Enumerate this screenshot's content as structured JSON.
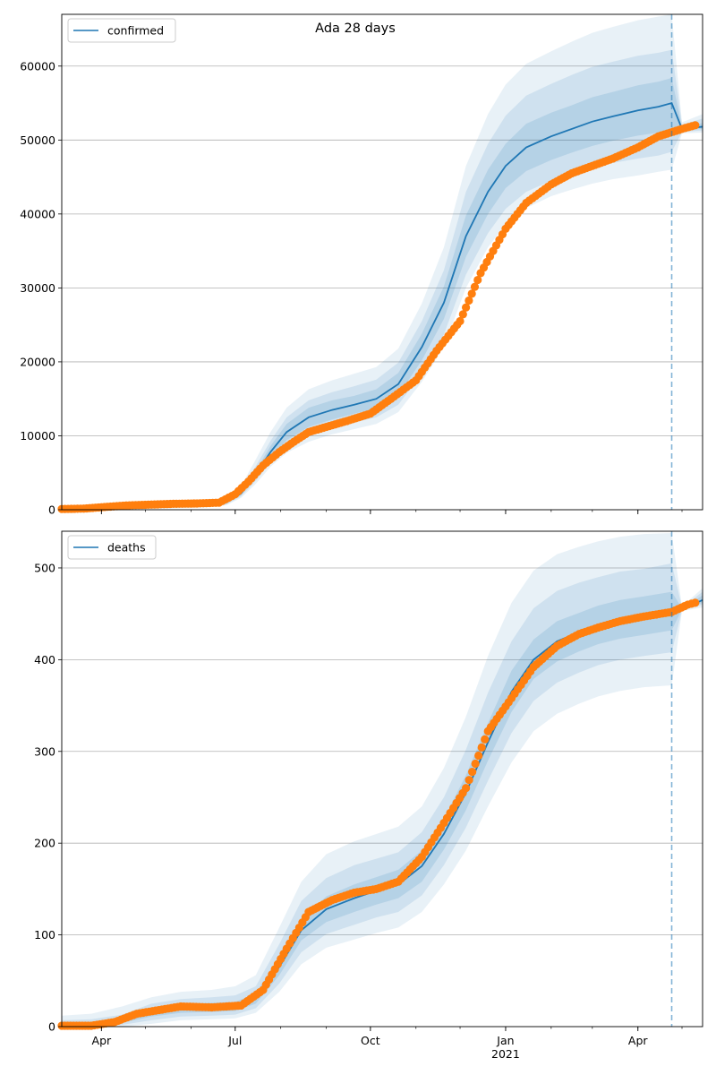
{
  "figure": {
    "title": "Ada 28 days"
  },
  "x_axis": {
    "ticks": [
      {
        "date": "2020-04-01",
        "label": "Apr",
        "sublabel": ""
      },
      {
        "date": "2020-07-01",
        "label": "Jul",
        "sublabel": ""
      },
      {
        "date": "2020-10-01",
        "label": "Oct",
        "sublabel": ""
      },
      {
        "date": "2021-01-01",
        "label": "Jan",
        "sublabel": "2021"
      },
      {
        "date": "2021-04-01",
        "label": "Apr",
        "sublabel": ""
      }
    ],
    "range": [
      "2020-03-05",
      "2021-05-15"
    ]
  },
  "colors": {
    "model_line": "#1f77b4",
    "observed": "#ff7f0e",
    "band": "#1f77b4",
    "forecast_line": "#1f77b4",
    "grid": "#b0b0b0"
  },
  "chart_data": [
    {
      "type": "line",
      "name": "confirmed-panel",
      "legend": {
        "label": "confirmed",
        "placement": "top-left"
      },
      "ylim": [
        0,
        67000
      ],
      "yticks": [
        0,
        10000,
        20000,
        30000,
        40000,
        50000,
        60000
      ],
      "grid": "horizontal",
      "forecast_start": "2021-04-24",
      "model": {
        "x": [
          "2020-03-05",
          "2020-03-25",
          "2020-04-15",
          "2020-05-15",
          "2020-06-10",
          "2020-06-25",
          "2020-07-05",
          "2020-07-15",
          "2020-07-25",
          "2020-08-05",
          "2020-08-20",
          "2020-09-05",
          "2020-09-20",
          "2020-10-05",
          "2020-10-20",
          "2020-11-05",
          "2020-11-20",
          "2020-12-05",
          "2020-12-20",
          "2021-01-01",
          "2021-01-15",
          "2021-02-01",
          "2021-02-15",
          "2021-03-01",
          "2021-03-15",
          "2021-04-01",
          "2021-04-15",
          "2021-04-24",
          "2021-05-01",
          "2021-05-15"
        ],
        "y": [
          100,
          150,
          400,
          600,
          700,
          1000,
          2200,
          4800,
          7800,
          10500,
          12500,
          13500,
          14200,
          15000,
          17000,
          22000,
          28000,
          37000,
          43000,
          46500,
          49000,
          50500,
          51500,
          52500,
          53200,
          54000,
          54500,
          55000,
          51500,
          51800
        ],
        "bands": [
          {
            "lower": [
              0,
              0,
              0,
              200,
              300,
              600,
              1600,
              3500,
              5800,
              7700,
              9200,
              10200,
              10900,
              11600,
              13200,
              17300,
              22000,
              30000,
              35500,
              38600,
              40800,
              42400,
              43300,
              44100,
              44700,
              45200,
              45700,
              46000,
              50900,
              51000
            ],
            "upper": [
              200,
              300,
              800,
              1100,
              1200,
              1600,
              3200,
              6800,
              10500,
              13800,
              16300,
              17500,
              18400,
              19300,
              21800,
              27900,
              35500,
              46500,
              53500,
              57500,
              60300,
              62000,
              63300,
              64500,
              65300,
              66200,
              66700,
              67000,
              52400,
              53500
            ]
          },
          {
            "lower": [
              0,
              20,
              100,
              320,
              420,
              720,
              1800,
              3900,
              6400,
              8500,
              10100,
              11100,
              11800,
              12500,
              14200,
              18500,
              23700,
              31800,
              37400,
              40700,
              43000,
              44500,
              45400,
              46300,
              46900,
              47500,
              47900,
              48400,
              51100,
              51300
            ],
            "upper": [
              180,
              260,
              680,
              900,
              1000,
              1350,
              2800,
              5900,
              9300,
              12500,
              14800,
              15900,
              16700,
              17600,
              19900,
              25500,
              32400,
              43000,
              49500,
              53300,
              56000,
              57600,
              58800,
              59900,
              60600,
              61400,
              61800,
              62200,
              52100,
              52900
            ]
          },
          {
            "lower": [
              40,
              80,
              220,
              440,
              540,
              840,
              2000,
              4300,
              7000,
              9400,
              11200,
              12200,
              13000,
              13700,
              15500,
              20200,
              25800,
              34200,
              40000,
              43500,
              45800,
              47300,
              48300,
              49200,
              49900,
              50600,
              51000,
              51400,
              51300,
              51500
            ],
            "upper": [
              160,
              220,
              560,
              760,
              860,
              1160,
              2400,
              5300,
              8600,
              11600,
              13800,
              14800,
              15400,
              16300,
              18500,
              23800,
              30200,
              39800,
              46000,
              49500,
              52200,
              53700,
              54700,
              55800,
              56500,
              57400,
              57900,
              58400,
              51800,
              52300
            ]
          }
        ]
      },
      "observed": {
        "name": "",
        "x": [
          "2020-03-05",
          "2020-03-20",
          "2020-04-05",
          "2020-04-20",
          "2020-05-05",
          "2020-05-20",
          "2020-06-05",
          "2020-06-20",
          "2020-07-01",
          "2020-07-10",
          "2020-07-20",
          "2020-07-31",
          "2020-08-10",
          "2020-08-20",
          "2020-09-01",
          "2020-09-15",
          "2020-10-01",
          "2020-10-15",
          "2020-11-01",
          "2020-11-15",
          "2020-12-01",
          "2020-12-15",
          "2021-01-01",
          "2021-01-15",
          "2021-02-01",
          "2021-02-15",
          "2021-03-01",
          "2021-03-15",
          "2021-04-01",
          "2021-04-15",
          "2021-05-01",
          "2021-05-10"
        ],
        "y": [
          100,
          150,
          400,
          600,
          700,
          800,
          850,
          950,
          2100,
          3800,
          6000,
          7800,
          9200,
          10500,
          11200,
          12000,
          13000,
          15000,
          17500,
          21500,
          25500,
          32000,
          38000,
          41500,
          44000,
          45500,
          46500,
          47500,
          49000,
          50500,
          51500,
          52000
        ]
      }
    },
    {
      "type": "line",
      "name": "deaths-panel",
      "legend": {
        "label": "deaths",
        "placement": "top-left"
      },
      "ylim": [
        0,
        540
      ],
      "yticks": [
        0,
        100,
        200,
        300,
        400,
        500
      ],
      "grid": "horizontal",
      "forecast_start": "2021-04-24",
      "model": {
        "x": [
          "2020-03-05",
          "2020-03-25",
          "2020-04-15",
          "2020-05-05",
          "2020-05-25",
          "2020-06-15",
          "2020-07-01",
          "2020-07-15",
          "2020-07-31",
          "2020-08-15",
          "2020-09-01",
          "2020-09-20",
          "2020-10-05",
          "2020-10-20",
          "2020-11-05",
          "2020-11-20",
          "2020-12-05",
          "2020-12-20",
          "2021-01-05",
          "2021-01-20",
          "2021-02-05",
          "2021-02-20",
          "2021-03-05",
          "2021-03-20",
          "2021-04-05",
          "2021-04-24",
          "2021-05-01",
          "2021-05-15"
        ],
        "y": [
          1,
          2,
          6,
          15,
          20,
          21,
          22,
          30,
          65,
          105,
          128,
          140,
          148,
          155,
          175,
          210,
          255,
          310,
          365,
          400,
          420,
          430,
          438,
          444,
          448,
          452,
          455,
          465
        ],
        "bands": [
          {
            "lower": [
              0,
              0,
              0,
              3,
              7,
              8,
              9,
              15,
              38,
              68,
              86,
              95,
              102,
              108,
              125,
              155,
              192,
              240,
              288,
              322,
              341,
              352,
              360,
              366,
              370,
              372,
              453,
              457
            ],
            "upper": [
              12,
              14,
              22,
              32,
              38,
              40,
              44,
              56,
              108,
              158,
              188,
              202,
              210,
              218,
              240,
              282,
              338,
              404,
              462,
              497,
              515,
              523,
              529,
              534,
              537,
              538,
              458,
              478
            ]
          },
          {
            "lower": [
              0,
              0,
              2,
              7,
              11,
              12,
              13,
              20,
              47,
              81,
              101,
              111,
              119,
              125,
              143,
              176,
              217,
              268,
              320,
              355,
              375,
              386,
              394,
              400,
              404,
              408,
              454,
              460
            ],
            "upper": [
              7,
              8,
              13,
              25,
              30,
              32,
              34,
              44,
              90,
              137,
              162,
              176,
              183,
              190,
              212,
              250,
              302,
              364,
              420,
              456,
              475,
              484,
              490,
              496,
              499,
              505,
              457,
              474
            ]
          },
          {
            "lower": [
              0,
              1,
              4,
              11,
              15,
              16,
              17,
              25,
              56,
              94,
              114,
              125,
              133,
              140,
              158,
              193,
              236,
              290,
              343,
              379,
              398,
              409,
              417,
              423,
              427,
              432,
              455,
              462
            ],
            "upper": [
              3,
              4,
              9,
              20,
              25,
              26,
              27,
              36,
              76,
              117,
              142,
              155,
              163,
              171,
              192,
              227,
              274,
              331,
              388,
              422,
              442,
              451,
              459,
              465,
              469,
              474,
              456,
              470
            ]
          }
        ]
      },
      "observed": {
        "name": "",
        "x": [
          "2020-03-05",
          "2020-03-25",
          "2020-04-10",
          "2020-04-25",
          "2020-05-10",
          "2020-05-25",
          "2020-06-15",
          "2020-07-05",
          "2020-07-20",
          "2020-08-05",
          "2020-08-20",
          "2020-09-05",
          "2020-09-20",
          "2020-10-05",
          "2020-10-20",
          "2020-11-05",
          "2020-11-20",
          "2020-12-05",
          "2020-12-20",
          "2021-01-05",
          "2021-01-20",
          "2021-02-05",
          "2021-02-20",
          "2021-03-05",
          "2021-03-20",
          "2021-04-05",
          "2021-04-24",
          "2021-05-05",
          "2021-05-10"
        ],
        "y": [
          1,
          1,
          5,
          14,
          18,
          22,
          21,
          23,
          40,
          85,
          125,
          138,
          146,
          150,
          158,
          185,
          222,
          260,
          322,
          358,
          392,
          415,
          428,
          435,
          442,
          447,
          452,
          460,
          462
        ]
      }
    }
  ]
}
